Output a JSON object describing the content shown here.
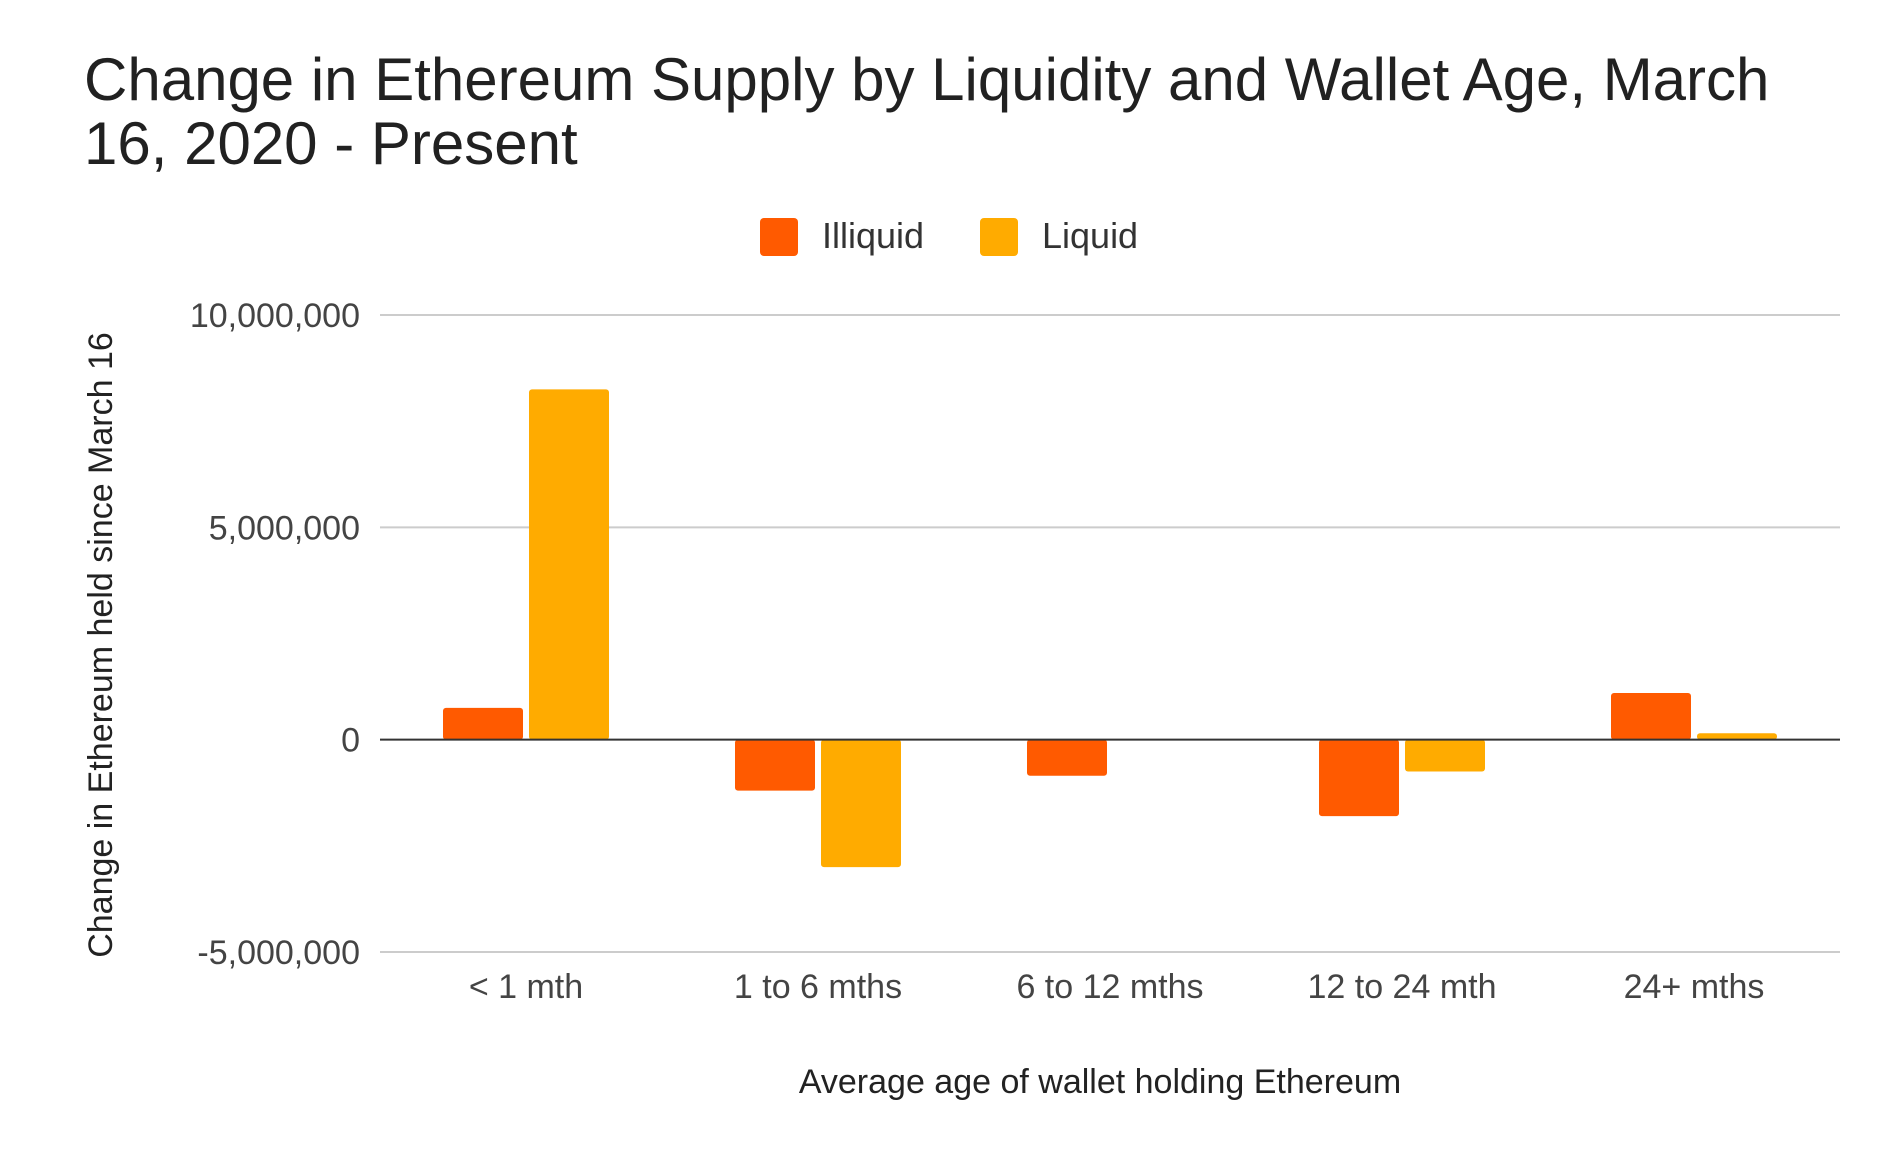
{
  "chart_data": {
    "type": "bar",
    "title": "Change in Ethereum Supply by Liquidity and Wallet Age, March 16, 2020 - Present",
    "xlabel": "Average age of wallet holding Ethereum",
    "ylabel": "Change in Ethereum held since March 16",
    "categories": [
      "< 1 mth",
      "1 to 6 mths",
      "6 to 12 mths",
      "12 to 24 mth",
      "24+ mths"
    ],
    "series": [
      {
        "name": "Illiquid",
        "color": "#ff5a00",
        "values": [
          750000,
          -1200000,
          -850000,
          -1800000,
          1100000
        ]
      },
      {
        "name": "Liquid",
        "color": "#ffab00",
        "values": [
          8250000,
          -3000000,
          0,
          -750000,
          150000
        ]
      }
    ],
    "ylim": [
      -5000000,
      10000000
    ],
    "yticks": [
      10000000,
      5000000,
      0,
      -5000000
    ],
    "ytick_labels": [
      "10,000,000",
      "5,000,000",
      "0",
      "-5,000,000"
    ],
    "grid": true,
    "legend_position": "top"
  }
}
